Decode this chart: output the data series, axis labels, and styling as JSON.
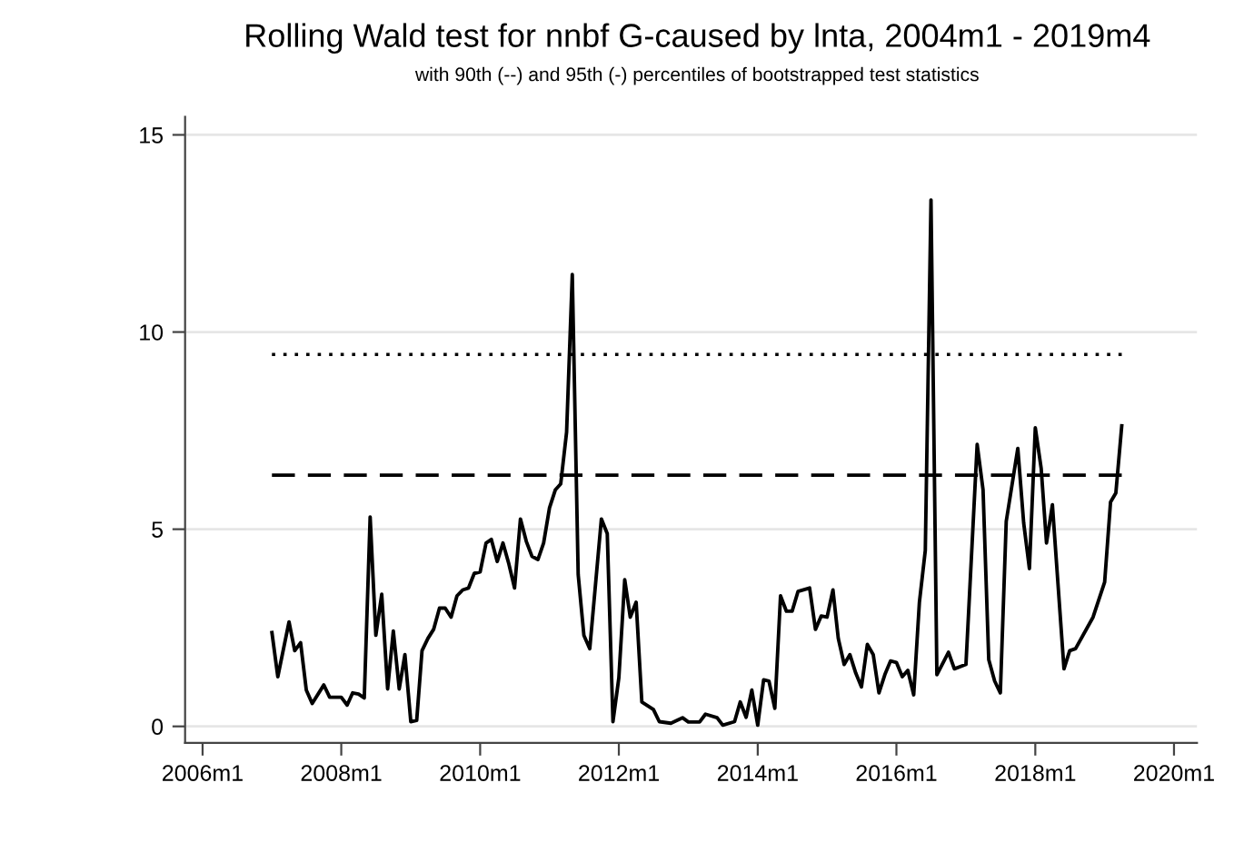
{
  "chart_data": {
    "type": "line",
    "title": "Rolling Wald test for nnbf G-caused by lnta, 2004m1 - 2019m4",
    "subtitle": "with 90th (--) and 95th (-) percentiles of bootstrapped test statistics",
    "xlim": [
      "2005-10",
      "2020-05"
    ],
    "ylim": [
      -0.42,
      15.46
    ],
    "xticks": [
      {
        "value": "2006-01",
        "label": "2006m1"
      },
      {
        "value": "2008-01",
        "label": "2008m1"
      },
      {
        "value": "2010-01",
        "label": "2010m1"
      },
      {
        "value": "2012-01",
        "label": "2012m1"
      },
      {
        "value": "2014-01",
        "label": "2014m1"
      },
      {
        "value": "2016-01",
        "label": "2016m1"
      },
      {
        "value": "2018-01",
        "label": "2018m1"
      },
      {
        "value": "2020-01",
        "label": "2020m1"
      }
    ],
    "yticks": [
      0,
      5,
      10,
      15
    ],
    "grid": "y",
    "legend": false,
    "marker": "none",
    "series": [
      {
        "color": "#000000",
        "line_style": "solid",
        "x": [
          "2007-01",
          "2007-02",
          "2007-04",
          "2007-05",
          "2007-06",
          "2007-07",
          "2007-08",
          "2007-10",
          "2007-11",
          "2008-01",
          "2008-02",
          "2008-03",
          "2008-04",
          "2008-05",
          "2008-06",
          "2008-07",
          "2008-08",
          "2008-09",
          "2008-10",
          "2008-11",
          "2008-12",
          "2009-01",
          "2009-02",
          "2009-03",
          "2009-04",
          "2009-05",
          "2009-06",
          "2009-07",
          "2009-08",
          "2009-09",
          "2009-10",
          "2009-11",
          "2009-12",
          "2010-01",
          "2010-02",
          "2010-03",
          "2010-04",
          "2010-05",
          "2010-06",
          "2010-07",
          "2010-08",
          "2010-09",
          "2010-10",
          "2010-11",
          "2010-12",
          "2011-01",
          "2011-02",
          "2011-03",
          "2011-04",
          "2011-05",
          "2011-06",
          "2011-07",
          "2011-08",
          "2011-10",
          "2011-11",
          "2011-12",
          "2012-01",
          "2012-02",
          "2012-03",
          "2012-04",
          "2012-05",
          "2012-07",
          "2012-08",
          "2012-10",
          "2012-12",
          "2013-01",
          "2013-03",
          "2013-04",
          "2013-06",
          "2013-07",
          "2013-09",
          "2013-10",
          "2013-11",
          "2013-12",
          "2014-01",
          "2014-02",
          "2014-03",
          "2014-04",
          "2014-05",
          "2014-06",
          "2014-07",
          "2014-08",
          "2014-10",
          "2014-11",
          "2014-12",
          "2015-01",
          "2015-02",
          "2015-03",
          "2015-04",
          "2015-05",
          "2015-06",
          "2015-07",
          "2015-08",
          "2015-09",
          "2015-10",
          "2015-11",
          "2015-12",
          "2016-01",
          "2016-02",
          "2016-03",
          "2016-04",
          "2016-05",
          "2016-06",
          "2016-07",
          "2016-08",
          "2016-10",
          "2016-11",
          "2017-01",
          "2017-03",
          "2017-04",
          "2017-05",
          "2017-06",
          "2017-07",
          "2017-08",
          "2017-10",
          "2017-11",
          "2017-12",
          "2018-01",
          "2018-02",
          "2018-03",
          "2018-04",
          "2018-06",
          "2018-07",
          "2018-08",
          "2018-11",
          "2019-01",
          "2019-02",
          "2019-03",
          "2019-04"
        ],
        "values": [
          2.38,
          1.26,
          2.65,
          1.92,
          2.12,
          0.92,
          0.58,
          1.05,
          0.74,
          0.74,
          0.54,
          0.85,
          0.82,
          0.72,
          5.31,
          2.31,
          3.35,
          0.95,
          2.42,
          0.95,
          1.82,
          0.12,
          0.15,
          1.92,
          2.23,
          2.46,
          3.0,
          3.0,
          2.77,
          3.31,
          3.46,
          3.51,
          3.88,
          3.92,
          4.65,
          4.74,
          4.18,
          4.65,
          4.12,
          3.51,
          5.26,
          4.69,
          4.31,
          4.23,
          4.65,
          5.54,
          6.0,
          6.15,
          7.46,
          11.46,
          3.85,
          2.31,
          1.97,
          5.26,
          4.89,
          0.12,
          1.23,
          3.72,
          2.77,
          3.15,
          0.62,
          0.43,
          0.12,
          0.08,
          0.22,
          0.11,
          0.11,
          0.31,
          0.22,
          0.03,
          0.12,
          0.62,
          0.23,
          0.92,
          0.03,
          1.18,
          1.15,
          0.46,
          3.31,
          2.92,
          2.92,
          3.42,
          3.51,
          2.46,
          2.8,
          2.77,
          3.46,
          2.23,
          1.57,
          1.82,
          1.35,
          1.0,
          2.08,
          1.82,
          0.85,
          1.31,
          1.66,
          1.62,
          1.26,
          1.42,
          0.8,
          3.15,
          4.46,
          13.35,
          1.31,
          1.88,
          1.46,
          1.57,
          7.15,
          6.0,
          1.69,
          1.15,
          0.85,
          5.2,
          7.05,
          5.15,
          4.0,
          7.57,
          6.54,
          4.65,
          5.62,
          1.46,
          1.92,
          1.97,
          2.77,
          3.66,
          5.69,
          5.92,
          7.62
        ]
      },
      {
        "color": "#000000",
        "line_style": "dashed",
        "x": [
          "2007-01",
          "2019-04"
        ],
        "values": [
          6.37,
          6.37
        ]
      },
      {
        "color": "#000000",
        "line_style": "dotted",
        "x": [
          "2007-01",
          "2019-04"
        ],
        "values": [
          9.43,
          9.43
        ]
      }
    ]
  }
}
